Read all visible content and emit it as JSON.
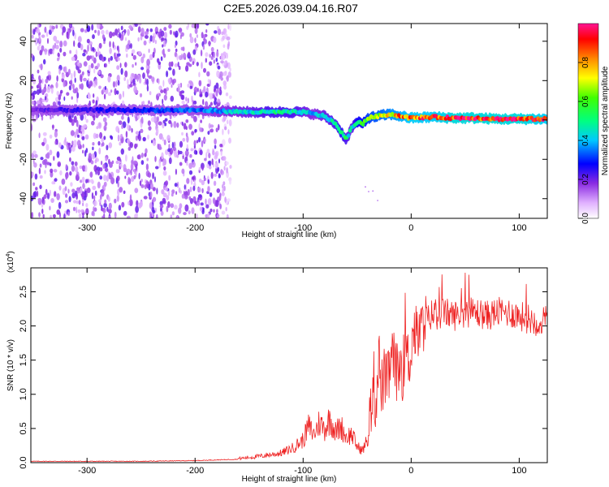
{
  "figure": {
    "title": "C2E5.2026.039.04.16.R07"
  },
  "chart_data": [
    {
      "type": "heatmap",
      "xlabel": "Height of straight line (km)",
      "ylabel": "Frequency (Hz)",
      "xlim": [
        -352,
        126
      ],
      "ylim": [
        -50,
        49
      ],
      "xticks": [
        -300,
        -200,
        -100,
        0,
        100
      ],
      "yticks": [
        -40,
        -20,
        0,
        20,
        40
      ],
      "noise_region_x": [
        -352,
        -175
      ],
      "ridge": {
        "x": [
          -350,
          -300,
          -250,
          -200,
          -175,
          -150,
          -130,
          -110,
          -100,
          -90,
          -80,
          -70,
          -65,
          -60,
          -55,
          -50,
          -45,
          -40,
          -30,
          -20,
          -10,
          0,
          20,
          40,
          60,
          80,
          100,
          126
        ],
        "freq": [
          5,
          5,
          5,
          5,
          4.5,
          4,
          4,
          4,
          4,
          3,
          2,
          -2,
          -6,
          -10,
          -4,
          -1,
          -2,
          1,
          2,
          3,
          2,
          1,
          1.5,
          1,
          1,
          0.5,
          0.5,
          0.5
        ],
        "amp": [
          0.2,
          0.25,
          0.3,
          0.35,
          0.4,
          0.45,
          0.5,
          0.5,
          0.45,
          0.4,
          0.45,
          0.5,
          0.55,
          0.5,
          0.45,
          0.6,
          0.6,
          0.7,
          0.75,
          0.8,
          0.85,
          0.9,
          0.9,
          0.95,
          0.95,
          0.95,
          0.95,
          0.9
        ]
      },
      "colorbar": {
        "label": "Normalized spectral amplitude",
        "range": [
          0,
          1
        ],
        "ticks": [
          "0.0",
          "0.2",
          "0.4",
          "0.6",
          "0.8"
        ]
      }
    },
    {
      "type": "line",
      "xlabel": "Height of straight line (km)",
      "ylabel": "SNR (10 * v/v)",
      "multiplier_label": "(x10",
      "multiplier_exp": "4",
      "xlim": [
        -352,
        126
      ],
      "ylim": [
        0,
        2.85
      ],
      "xticks": [
        -300,
        -200,
        -100,
        0,
        100
      ],
      "yticks": [
        0.0,
        0.5,
        1.0,
        1.5,
        2.0,
        2.5
      ],
      "ytick_labels": [
        "0.0",
        "0.5",
        "1.0",
        "1.5",
        "2.0",
        "2.5"
      ],
      "series": [
        {
          "name": "SNR",
          "color": "#ee2222",
          "x": [
            -352,
            -250,
            -200,
            -160,
            -140,
            -120,
            -110,
            -100,
            -95,
            -90,
            -85,
            -80,
            -75,
            -70,
            -65,
            -60,
            -55,
            -50,
            -45,
            -40,
            -37,
            -35,
            -33,
            -30,
            -28,
            -25,
            -22,
            -20,
            -18,
            -15,
            -12,
            -10,
            -8,
            -5,
            -2,
            0,
            3,
            5,
            8,
            10,
            12,
            14,
            16,
            18,
            20,
            25,
            30,
            40,
            50,
            60,
            70,
            80,
            90,
            100,
            110,
            120,
            126
          ],
          "y": [
            0.02,
            0.02,
            0.03,
            0.05,
            0.08,
            0.12,
            0.18,
            0.28,
            0.45,
            0.35,
            0.5,
            0.42,
            0.55,
            0.38,
            0.45,
            0.32,
            0.35,
            0.2,
            0.15,
            0.3,
            0.8,
            1.3,
            0.7,
            1.6,
            1.0,
            1.2,
            1.1,
            1.3,
            1.5,
            1.4,
            1.2,
            1.5,
            1.3,
            1.6,
            1.4,
            1.7,
            1.9,
            1.8,
            1.85,
            1.9,
            2.05,
            2.0,
            2.1,
            2.15,
            2.2,
            2.15,
            2.2,
            2.15,
            2.2,
            2.2,
            2.15,
            2.2,
            2.2,
            2.15,
            2.1,
            2.05,
            2.1
          ]
        }
      ]
    }
  ]
}
